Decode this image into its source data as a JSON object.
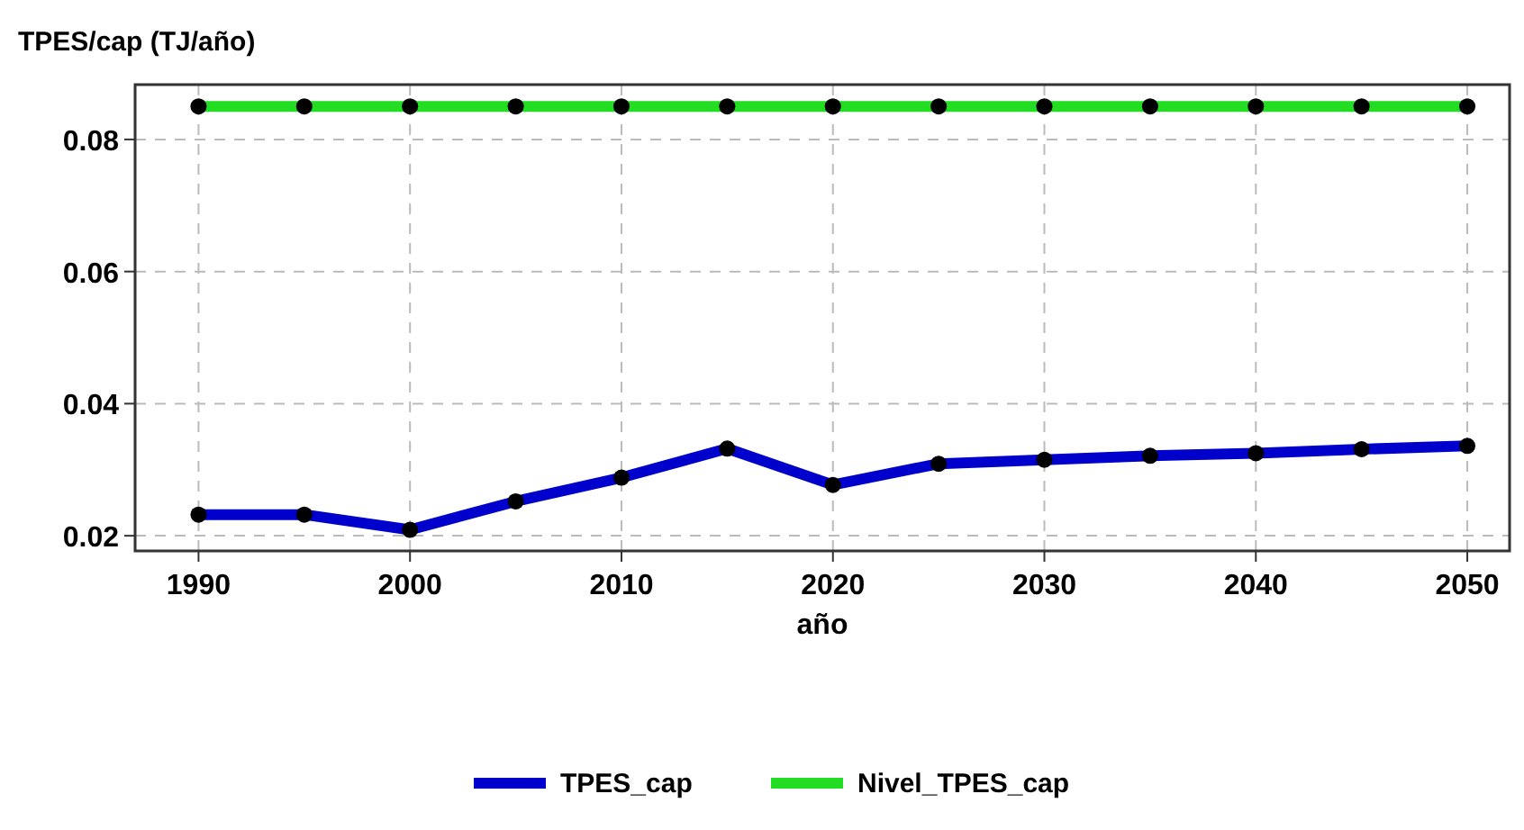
{
  "chart_data": {
    "type": "line",
    "ylabel": "TPES/cap (TJ/año)",
    "xlabel": "año",
    "x": [
      1990,
      1995,
      2000,
      2005,
      2010,
      2015,
      2020,
      2025,
      2030,
      2035,
      2040,
      2045,
      2050
    ],
    "series": [
      {
        "name": "TPES_cap",
        "color": "#0000cc",
        "values": [
          0.0232,
          0.0232,
          0.0209,
          0.0252,
          0.0288,
          0.0332,
          0.0277,
          0.0309,
          0.0315,
          0.0321,
          0.0325,
          0.0331,
          0.0336
        ]
      },
      {
        "name": "Nivel_TPES_cap",
        "color": "#22dd22",
        "values": [
          0.085,
          0.085,
          0.085,
          0.085,
          0.085,
          0.085,
          0.085,
          0.085,
          0.085,
          0.085,
          0.085,
          0.085,
          0.085
        ]
      }
    ],
    "xlim": [
      1987,
      2052
    ],
    "xticks": [
      1990,
      2000,
      2010,
      2020,
      2030,
      2040,
      2050
    ],
    "ylim": [
      0.0177,
      0.0883
    ],
    "yticks": [
      {
        "value": 0.02,
        "label": "0.02"
      },
      {
        "value": 0.04,
        "label": "0.04"
      },
      {
        "value": 0.06,
        "label": "0.06"
      },
      {
        "value": 0.08,
        "label": "0.08"
      }
    ],
    "grid": true,
    "legend": "bottom",
    "marker": "circle",
    "line_style": "solid"
  }
}
